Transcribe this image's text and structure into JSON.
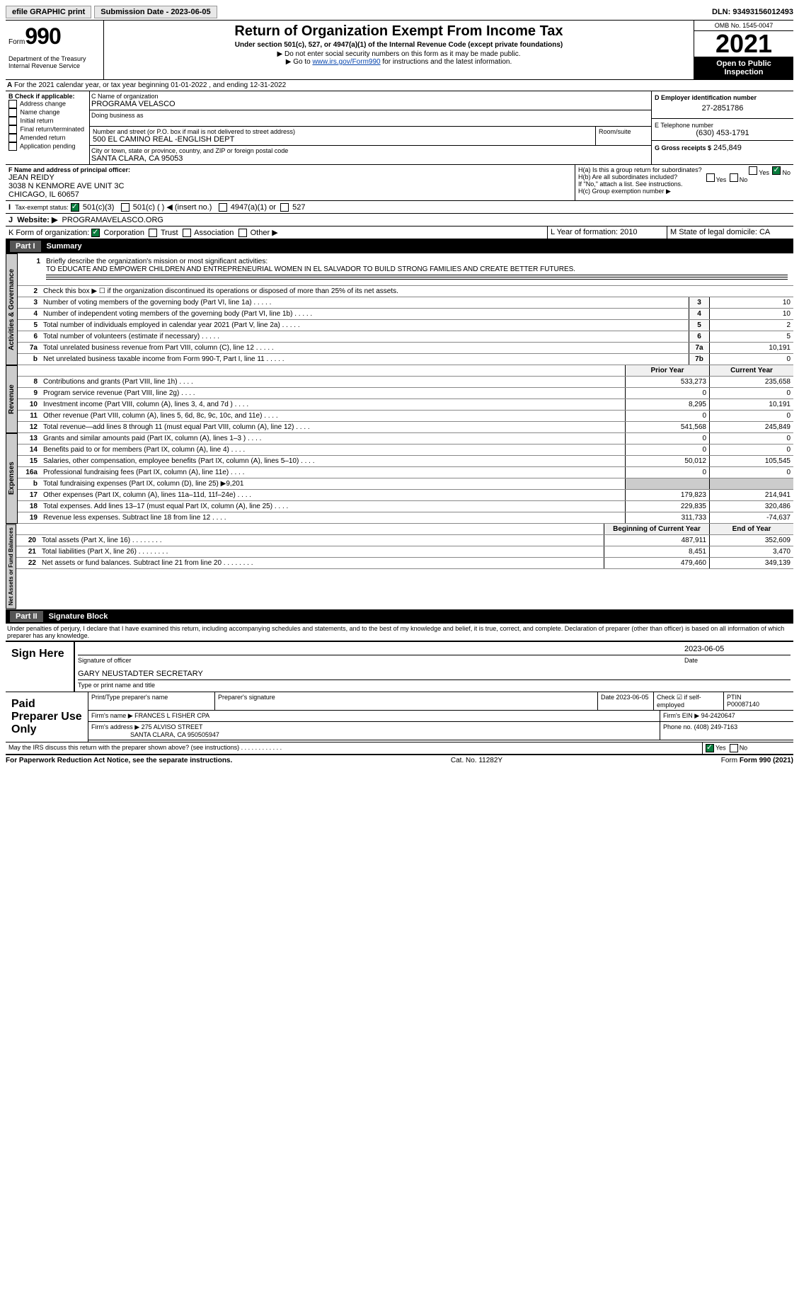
{
  "topbar": {
    "efile": "efile GRAPHIC print",
    "submission": "Submission Date - 2023-06-05",
    "dln": "DLN: 93493156012493"
  },
  "header": {
    "form_label": "Form",
    "form_num": "990",
    "title": "Return of Organization Exempt From Income Tax",
    "subtitle": "Under section 501(c), 527, or 4947(a)(1) of the Internal Revenue Code (except private foundations)",
    "note1": "▶ Do not enter social security numbers on this form as it may be made public.",
    "note2_pre": "▶ Go to ",
    "note2_link": "www.irs.gov/Form990",
    "note2_post": " for instructions and the latest information.",
    "dept": "Department of the Treasury Internal Revenue Service",
    "omb": "OMB No. 1545-0047",
    "year": "2021",
    "inspect": "Open to Public Inspection"
  },
  "sectionA": {
    "line": "For the 2021 calendar year, or tax year beginning 01-01-2022   , and ending 12-31-2022"
  },
  "sectionB": {
    "label": "B Check if applicable:",
    "opts": [
      "Address change",
      "Name change",
      "Initial return",
      "Final return/terminated",
      "Amended return",
      "Application pending"
    ]
  },
  "sectionC": {
    "label": "C Name of organization",
    "name": "PROGRAMA VELASCO",
    "dba_label": "Doing business as",
    "addr_label": "Number and street (or P.O. box if mail is not delivered to street address)",
    "addr": "500 EL CAMINO REAL -ENGLISH DEPT",
    "room_label": "Room/suite",
    "city_label": "City or town, state or province, country, and ZIP or foreign postal code",
    "city": "SANTA CLARA, CA  95053"
  },
  "sectionD": {
    "label": "D Employer identification number",
    "value": "27-2851786"
  },
  "sectionE": {
    "label": "E Telephone number",
    "value": "(630) 453-1791"
  },
  "sectionG": {
    "label": "G Gross receipts $",
    "value": "245,849"
  },
  "sectionF": {
    "label": "F  Name and address of principal officer:",
    "name": "JEAN REIDY",
    "addr1": "3038 N KENMORE AVE UNIT 3C",
    "addr2": "CHICAGO, IL  60657"
  },
  "sectionH": {
    "ha": "H(a)  Is this a group return for subordinates?",
    "hb": "H(b)  Are all subordinates included?",
    "hb_note": "If \"No,\" attach a list. See instructions.",
    "hc": "H(c)  Group exemption number ▶"
  },
  "sectionI": {
    "label": "Tax-exempt status:",
    "c3": "501(c)(3)",
    "c": "501(c) (  ) ◀ (insert no.)",
    "a1": "4947(a)(1) or",
    "s527": "527"
  },
  "sectionJ": {
    "label": "Website: ▶",
    "value": "PROGRAMAVELASCO.ORG"
  },
  "sectionK": {
    "label": "K Form of organization:",
    "corp": "Corporation",
    "trust": "Trust",
    "assoc": "Association",
    "other": "Other ▶"
  },
  "sectionL": {
    "label": "L Year of formation:",
    "value": "2010"
  },
  "sectionM": {
    "label": "M State of legal domicile:",
    "value": "CA"
  },
  "part1": {
    "title": "Part I",
    "heading": "Summary",
    "mission_label": "Briefly describe the organization's mission or most significant activities:",
    "mission": "TO EDUCATE AND EMPOWER CHILDREN AND ENTREPRENEURIAL WOMEN IN EL SALVADOR TO BUILD STRONG FAMILIES AND CREATE BETTER FUTURES.",
    "line2": "Check this box ▶ ☐ if the organization discontinued its operations or disposed of more than 25% of its net assets.",
    "rows_gov": [
      {
        "n": "3",
        "t": "Number of voting members of the governing body (Part VI, line 1a)",
        "r": "3",
        "v": "10"
      },
      {
        "n": "4",
        "t": "Number of independent voting members of the governing body (Part VI, line 1b)",
        "r": "4",
        "v": "10"
      },
      {
        "n": "5",
        "t": "Total number of individuals employed in calendar year 2021 (Part V, line 2a)",
        "r": "5",
        "v": "2"
      },
      {
        "n": "6",
        "t": "Total number of volunteers (estimate if necessary)",
        "r": "6",
        "v": "5"
      },
      {
        "n": "7a",
        "t": "Total unrelated business revenue from Part VIII, column (C), line 12",
        "r": "7a",
        "v": "10,191"
      },
      {
        "n": "b",
        "t": "Net unrelated business taxable income from Form 990-T, Part I, line 11",
        "r": "7b",
        "v": "0"
      }
    ],
    "col_prior": "Prior Year",
    "col_current": "Current Year",
    "rows_rev": [
      {
        "n": "8",
        "t": "Contributions and grants (Part VIII, line 1h)",
        "p": "533,273",
        "c": "235,658"
      },
      {
        "n": "9",
        "t": "Program service revenue (Part VIII, line 2g)",
        "p": "0",
        "c": "0"
      },
      {
        "n": "10",
        "t": "Investment income (Part VIII, column (A), lines 3, 4, and 7d )",
        "p": "8,295",
        "c": "10,191"
      },
      {
        "n": "11",
        "t": "Other revenue (Part VIII, column (A), lines 5, 6d, 8c, 9c, 10c, and 11e)",
        "p": "0",
        "c": "0"
      },
      {
        "n": "12",
        "t": "Total revenue—add lines 8 through 11 (must equal Part VIII, column (A), line 12)",
        "p": "541,568",
        "c": "245,849"
      }
    ],
    "rows_exp": [
      {
        "n": "13",
        "t": "Grants and similar amounts paid (Part IX, column (A), lines 1–3 )",
        "p": "0",
        "c": "0"
      },
      {
        "n": "14",
        "t": "Benefits paid to or for members (Part IX, column (A), line 4)",
        "p": "0",
        "c": "0"
      },
      {
        "n": "15",
        "t": "Salaries, other compensation, employee benefits (Part IX, column (A), lines 5–10)",
        "p": "50,012",
        "c": "105,545"
      },
      {
        "n": "16a",
        "t": "Professional fundraising fees (Part IX, column (A), line 11e)",
        "p": "0",
        "c": "0"
      },
      {
        "n": "b",
        "t": "Total fundraising expenses (Part IX, column (D), line 25) ▶9,201",
        "p": "",
        "c": "",
        "shaded": true
      },
      {
        "n": "17",
        "t": "Other expenses (Part IX, column (A), lines 11a–11d, 11f–24e)",
        "p": "179,823",
        "c": "214,941"
      },
      {
        "n": "18",
        "t": "Total expenses. Add lines 13–17 (must equal Part IX, column (A), line 25)",
        "p": "229,835",
        "c": "320,486"
      },
      {
        "n": "19",
        "t": "Revenue less expenses. Subtract line 18 from line 12",
        "p": "311,733",
        "c": "-74,637"
      }
    ],
    "col_begin": "Beginning of Current Year",
    "col_end": "End of Year",
    "rows_net": [
      {
        "n": "20",
        "t": "Total assets (Part X, line 16)",
        "p": "487,911",
        "c": "352,609"
      },
      {
        "n": "21",
        "t": "Total liabilities (Part X, line 26)",
        "p": "8,451",
        "c": "3,470"
      },
      {
        "n": "22",
        "t": "Net assets or fund balances. Subtract line 21 from line 20",
        "p": "479,460",
        "c": "349,139"
      }
    ]
  },
  "part2": {
    "title": "Part II",
    "heading": "Signature Block",
    "declaration": "Under penalties of perjury, I declare that I have examined this return, including accompanying schedules and statements, and to the best of my knowledge and belief, it is true, correct, and complete. Declaration of preparer (other than officer) is based on all information of which preparer has any knowledge.",
    "sign_here": "Sign Here",
    "sig_date": "2023-06-05",
    "sig_of": "Signature of officer",
    "date_lbl": "Date",
    "officer": "GARY NEUSTADTER  SECRETARY",
    "type_name": "Type or print name and title",
    "paid": "Paid Preparer Use Only",
    "prep_name_lbl": "Print/Type preparer's name",
    "prep_sig_lbl": "Preparer's signature",
    "prep_date": "Date 2023-06-05",
    "check_self": "Check ☑ if self-employed",
    "ptin_lbl": "PTIN",
    "ptin": "P00087140",
    "firm_name_lbl": "Firm's name    ▶",
    "firm_name": "FRANCES L FISHER CPA",
    "firm_ein_lbl": "Firm's EIN ▶",
    "firm_ein": "94-2420647",
    "firm_addr_lbl": "Firm's address ▶",
    "firm_addr": "275 ALVISO STREET",
    "firm_city": "SANTA CLARA, CA  950505947",
    "phone_lbl": "Phone no.",
    "phone": "(408) 249-7163",
    "discuss": "May the IRS discuss this return with the preparer shown above? (see instructions)"
  },
  "footer": {
    "notice": "For Paperwork Reduction Act Notice, see the separate instructions.",
    "cat": "Cat. No. 11282Y",
    "form": "Form 990 (2021)"
  }
}
